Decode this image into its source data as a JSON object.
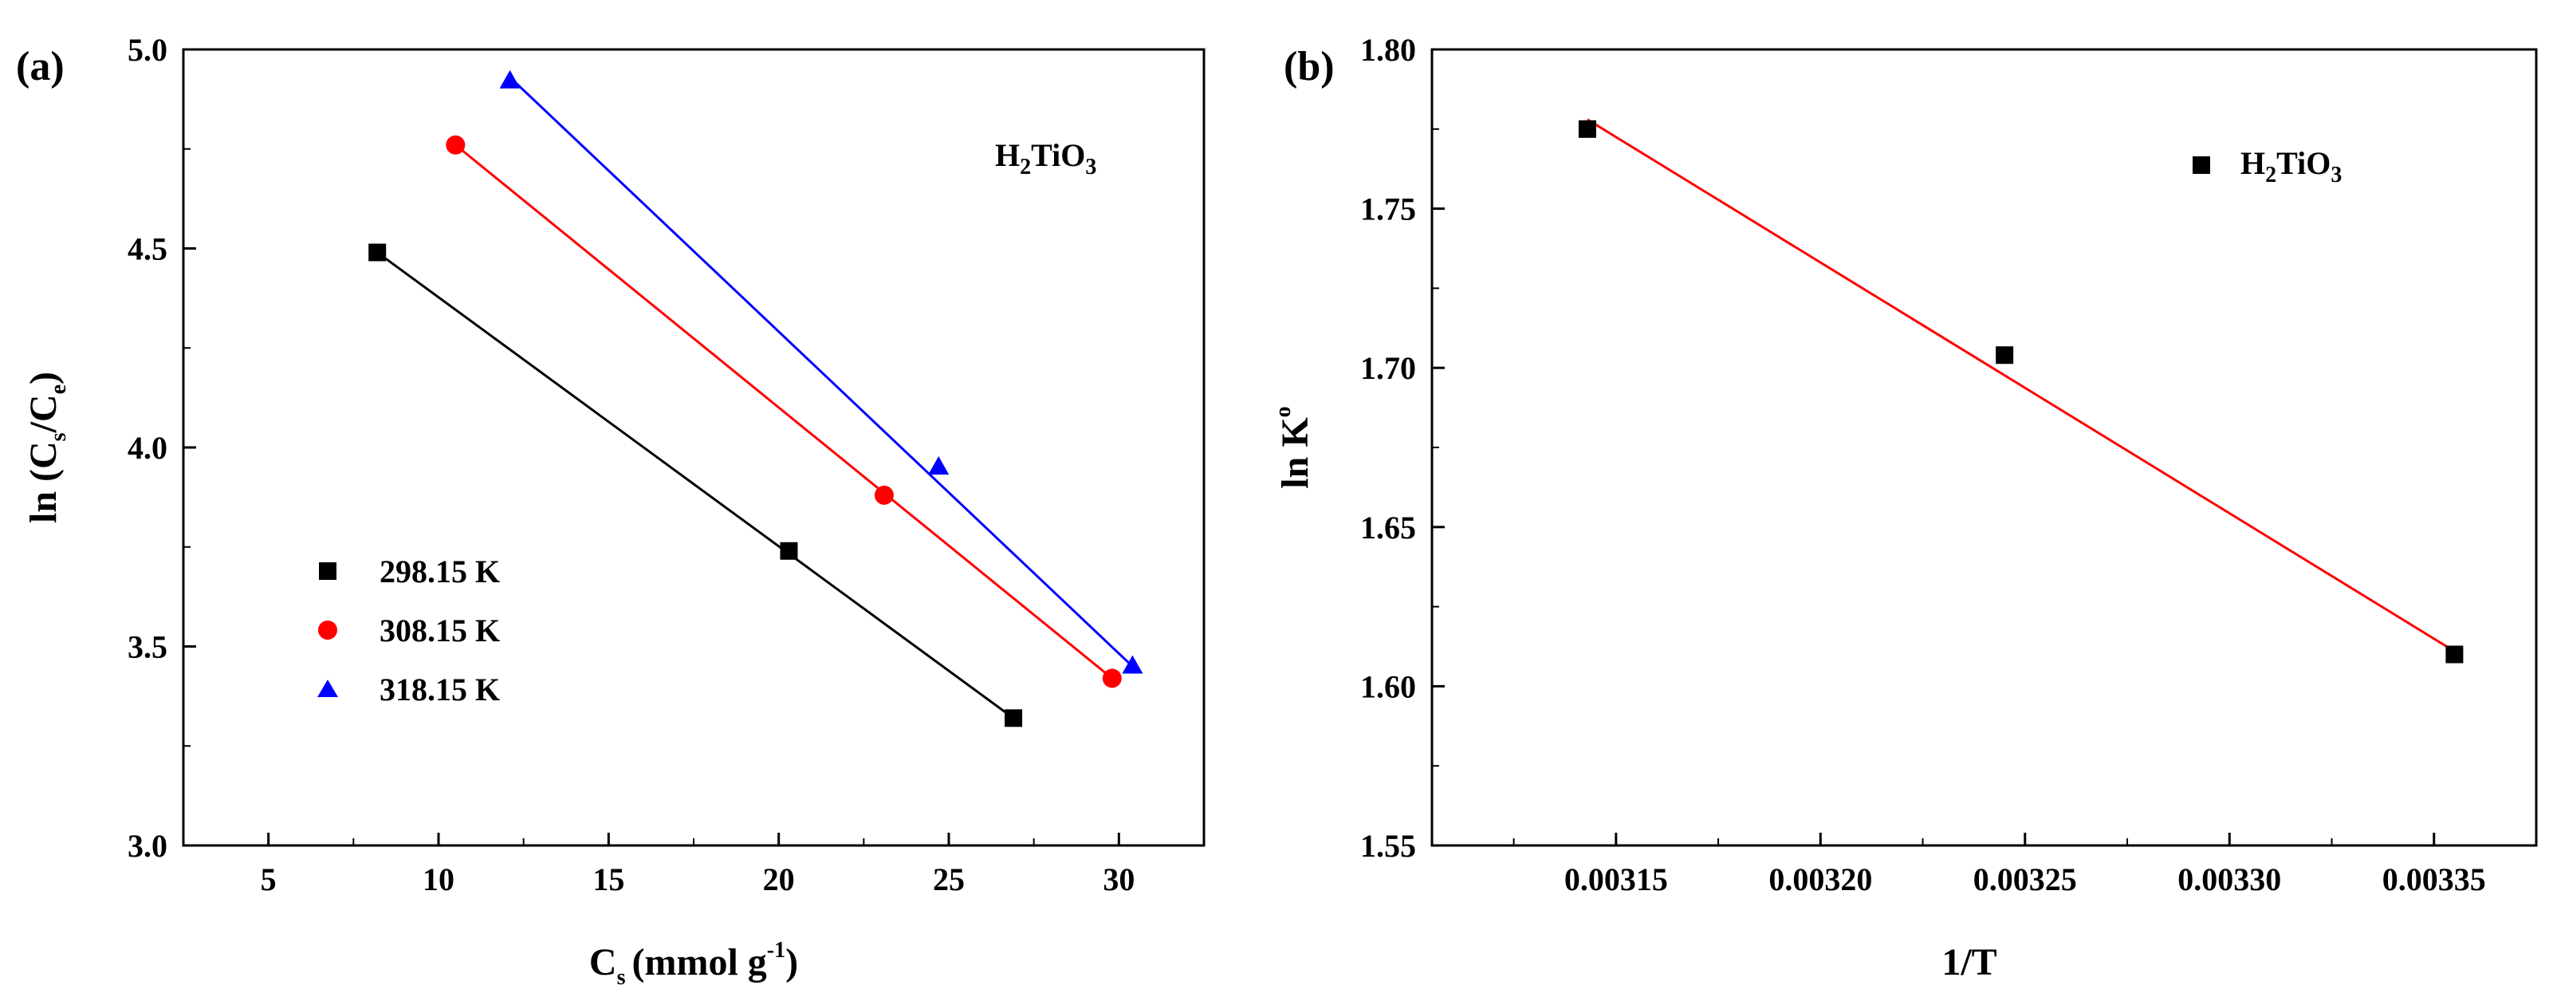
{
  "chart_data": [
    {
      "panel_label": "(a)",
      "type": "scatter",
      "xlabel": {
        "main": "C",
        "sub": "s",
        "units_pre": "(mmol g",
        "sup": "-1",
        "units_post": ")"
      },
      "ylabel": {
        "pre": "ln (C",
        "sub1": "s",
        "mid": "/C",
        "sub2": "e",
        "post": ")"
      },
      "xlim": [
        2.5,
        32.5
      ],
      "ylim": [
        3.0,
        5.0
      ],
      "xticks": [
        5,
        10,
        15,
        20,
        25,
        30
      ],
      "yticks": [
        3.0,
        3.5,
        4.0,
        4.5,
        5.0
      ],
      "annotation": {
        "pre": "H",
        "sub1": "2",
        "mid": "TiO",
        "sub2": "3"
      },
      "series": [
        {
          "name": "298.15 K",
          "marker": "square",
          "color": "#000000",
          "line_color": "#000000",
          "x": [
            8.2,
            20.3,
            26.9
          ],
          "y": [
            4.49,
            3.74,
            3.32
          ],
          "fit": [
            [
              8.2,
              4.49
            ],
            [
              26.9,
              3.32
            ]
          ]
        },
        {
          "name": "308.15 K",
          "marker": "circle",
          "color": "#ff0000",
          "line_color": "#ff0000",
          "x": [
            10.5,
            23.1,
            29.8
          ],
          "y": [
            4.76,
            3.88,
            3.42
          ],
          "fit": [
            [
              10.5,
              4.76
            ],
            [
              29.8,
              3.42
            ]
          ]
        },
        {
          "name": "318.15 K",
          "marker": "triangle",
          "color": "#0000ff",
          "line_color": "#0000ff",
          "x": [
            12.1,
            24.7,
            30.4
          ],
          "y": [
            4.92,
            3.95,
            3.45
          ],
          "fit": [
            [
              12.1,
              4.93
            ],
            [
              30.4,
              3.45
            ]
          ]
        }
      ],
      "legend_position": "lower-left"
    },
    {
      "panel_label": "(b)",
      "type": "scatter",
      "xlabel": {
        "main": "1/T"
      },
      "ylabel": {
        "pre": "ln K",
        "sup": "o"
      },
      "xlim": [
        0.003105,
        0.003375
      ],
      "ylim": [
        1.55,
        1.8
      ],
      "xticks": [
        "0.00315",
        "0.00320",
        "0.00325",
        "0.00330",
        "0.00335"
      ],
      "yticks": [
        "1.55",
        "1.60",
        "1.65",
        "1.70",
        "1.75",
        "1.80"
      ],
      "legend": {
        "pre": "H",
        "sub1": "2",
        "mid": "TiO",
        "sub2": "3"
      },
      "legend_position": "top-right",
      "series": [
        {
          "name": "H2TiO3",
          "marker": "square",
          "color": "#000000",
          "x": [
            0.003143,
            0.003245,
            0.003355
          ],
          "y": [
            1.775,
            1.704,
            1.61
          ],
          "fit": [
            [
              0.003143,
              1.778
            ],
            [
              0.003355,
              1.611
            ]
          ],
          "fit_color": "#ff0000"
        }
      ]
    }
  ]
}
